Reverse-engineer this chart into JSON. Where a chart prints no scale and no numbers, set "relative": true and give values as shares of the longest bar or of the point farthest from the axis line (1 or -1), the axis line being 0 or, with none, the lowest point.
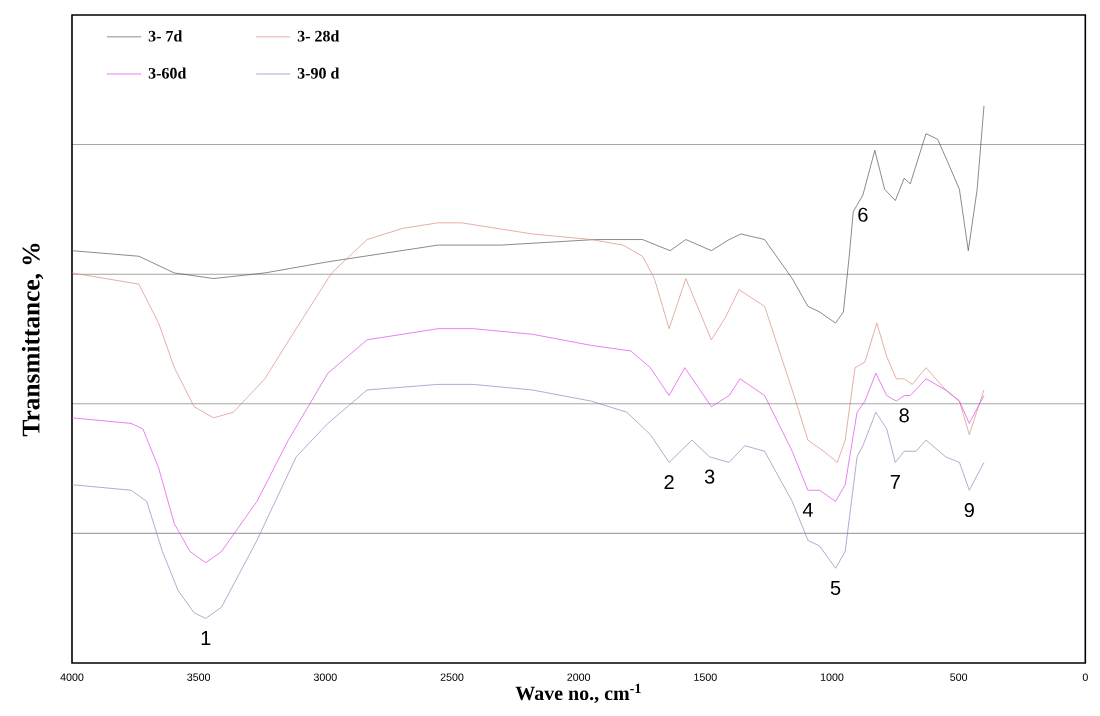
{
  "chart_data": {
    "type": "line",
    "relative": true,
    "xlabel": "Wave no., cm$^{-1}$",
    "ylabel": "Transmittance, %",
    "xlim": [
      4000,
      0
    ],
    "xticks": [
      4000,
      3500,
      3000,
      2500,
      2000,
      1500,
      1000,
      500,
      0
    ],
    "grid": "y",
    "legend": "top left",
    "marker": "none",
    "line_style": "solid",
    "series": [
      {
        "name": "3- 7d",
        "color": "#505050",
        "x": [
          4000,
          3736,
          3596,
          3441,
          3239,
          2990,
          2555,
          2307,
          1934,
          1872,
          1825,
          1748,
          1639,
          1577,
          1476,
          1406,
          1359,
          1266,
          1157,
          1095,
          1049,
          986,
          955,
          932,
          916,
          878,
          831,
          792,
          750,
          715,
          691,
          629,
          583,
          544,
          497,
          462,
          427,
          400
        ],
        "values": [
          0.74,
          0.73,
          0.7,
          0.69,
          0.7,
          0.72,
          0.75,
          0.75,
          0.76,
          0.76,
          0.76,
          0.76,
          0.74,
          0.76,
          0.74,
          0.76,
          0.77,
          0.76,
          0.69,
          0.64,
          0.63,
          0.61,
          0.63,
          0.73,
          0.81,
          0.84,
          0.92,
          0.85,
          0.83,
          0.87,
          0.86,
          0.95,
          0.94,
          0.9,
          0.85,
          0.74,
          0.85,
          1.0
        ]
      },
      {
        "name": "3- 28d",
        "color": "#d9877c",
        "x": [
          4000,
          3736,
          3658,
          3596,
          3518,
          3441,
          3363,
          3239,
          3115,
          2975,
          2835,
          2695,
          2555,
          2462,
          2183,
          1950,
          1825,
          1748,
          1701,
          1643,
          1577,
          1476,
          1421,
          1367,
          1266,
          1157,
          1095,
          1033,
          979,
          948,
          909,
          870,
          823,
          784,
          746,
          715,
          683,
          629,
          551,
          497,
          458,
          400
        ],
        "values": [
          0.7,
          0.68,
          0.61,
          0.53,
          0.46,
          0.44,
          0.45,
          0.51,
          0.6,
          0.7,
          0.76,
          0.78,
          0.79,
          0.79,
          0.77,
          0.76,
          0.75,
          0.73,
          0.69,
          0.6,
          0.69,
          0.58,
          0.62,
          0.67,
          0.64,
          0.49,
          0.4,
          0.38,
          0.36,
          0.4,
          0.53,
          0.54,
          0.61,
          0.55,
          0.51,
          0.51,
          0.5,
          0.53,
          0.49,
          0.47,
          0.41,
          0.49
        ]
      },
      {
        "name": "3-60d",
        "color": "#e040e8",
        "x": [
          4000,
          3767,
          3720,
          3658,
          3596,
          3534,
          3472,
          3410,
          3270,
          3146,
          2990,
          2835,
          2555,
          2416,
          2183,
          1950,
          1794,
          1717,
          1643,
          1581,
          1476,
          1406,
          1363,
          1266,
          1157,
          1095,
          1049,
          986,
          948,
          901,
          870,
          827,
          784,
          746,
          715,
          691,
          629,
          551,
          497,
          458,
          400
        ],
        "values": [
          0.44,
          0.43,
          0.42,
          0.35,
          0.25,
          0.2,
          0.18,
          0.2,
          0.29,
          0.4,
          0.52,
          0.58,
          0.6,
          0.6,
          0.59,
          0.57,
          0.56,
          0.53,
          0.48,
          0.53,
          0.46,
          0.48,
          0.51,
          0.48,
          0.38,
          0.31,
          0.31,
          0.29,
          0.32,
          0.45,
          0.47,
          0.52,
          0.48,
          0.47,
          0.48,
          0.48,
          0.51,
          0.49,
          0.47,
          0.43,
          0.48
        ]
      },
      {
        "name": "3-90 d",
        "color": "#8a84b8",
        "x": [
          4000,
          3767,
          3705,
          3643,
          3581,
          3518,
          3472,
          3410,
          3270,
          3115,
          2990,
          2835,
          2555,
          2416,
          2183,
          1950,
          1810,
          1717,
          1643,
          1553,
          1483,
          1406,
          1344,
          1266,
          1157,
          1095,
          1049,
          986,
          948,
          901,
          878,
          827,
          784,
          750,
          715,
          668,
          629,
          551,
          497,
          458,
          400
        ],
        "values": [
          0.32,
          0.31,
          0.29,
          0.2,
          0.13,
          0.09,
          0.08,
          0.1,
          0.22,
          0.37,
          0.43,
          0.49,
          0.5,
          0.5,
          0.49,
          0.47,
          0.45,
          0.41,
          0.36,
          0.4,
          0.37,
          0.36,
          0.39,
          0.38,
          0.29,
          0.22,
          0.21,
          0.17,
          0.2,
          0.37,
          0.39,
          0.45,
          0.42,
          0.36,
          0.38,
          0.38,
          0.4,
          0.37,
          0.36,
          0.31,
          0.36
        ]
      }
    ],
    "annotations": [
      {
        "text": "1",
        "x": 3472,
        "y": 0.08
      },
      {
        "text": "2",
        "x": 1643,
        "y": 0.36
      },
      {
        "text": "3",
        "x": 1483,
        "y": 0.37
      },
      {
        "text": "4",
        "x": 1095,
        "y": 0.31
      },
      {
        "text": "5",
        "x": 986,
        "y": 0.17
      },
      {
        "text": "6",
        "x": 878,
        "y": 0.84
      },
      {
        "text": "7",
        "x": 750,
        "y": 0.36
      },
      {
        "text": "8",
        "x": 715,
        "y": 0.48
      },
      {
        "text": "9",
        "x": 458,
        "y": 0.31
      }
    ]
  }
}
